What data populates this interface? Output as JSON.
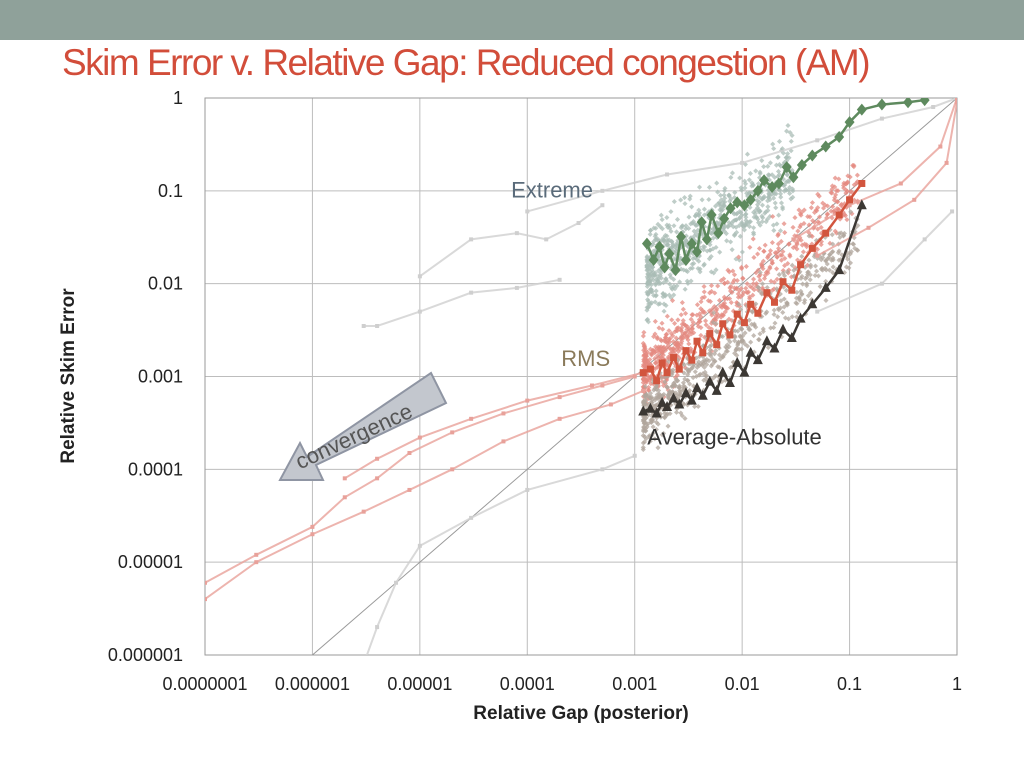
{
  "slide": {
    "title": "Skim Error v. Relative Gap: Reduced congestion (AM)",
    "title_color": "#d24d3a",
    "top_bar_color": "#8fa19a"
  },
  "chart_data": {
    "type": "scatter",
    "xlabel": "Relative Gap (posterior)",
    "ylabel": "Relative Skim Error",
    "x_scale": "log",
    "y_scale": "log",
    "xlim": [
      1e-07,
      1
    ],
    "ylim": [
      1e-06,
      1
    ],
    "x_ticks": [
      1e-07,
      1e-06,
      1e-05,
      0.0001,
      0.001,
      0.01,
      0.1,
      1
    ],
    "x_tick_labels": [
      "0.0000001",
      "0.000001",
      "0.00001",
      "0.0001",
      "0.001",
      "0.01",
      "0.1",
      "1"
    ],
    "y_ticks": [
      1e-06,
      1e-05,
      0.0001,
      0.001,
      0.01,
      0.1,
      1
    ],
    "y_tick_labels": [
      "0.000001",
      "0.00001",
      "0.0001",
      "0.001",
      "0.01",
      "0.1",
      "1"
    ],
    "grid": true,
    "reference_line": {
      "x": [
        1e-06,
        1
      ],
      "y": [
        1e-06,
        1
      ],
      "color": "#999999"
    },
    "annotations": [
      {
        "text": "Extreme",
        "x": 0.00017,
        "y": 0.085,
        "color": "#5a6b7a"
      },
      {
        "text": "RMS",
        "x": 0.00035,
        "y": 0.0013,
        "color": "#8a7a5a"
      },
      {
        "text": "Average-Absolute",
        "x": 0.0085,
        "y": 0.000185,
        "color": "#333333"
      },
      {
        "text": "convergence",
        "x": 4e-06,
        "y": 0.00025,
        "color": "#555555"
      }
    ],
    "series": [
      {
        "name": "Extreme",
        "color": "#5e8a5e",
        "marker": "diamond",
        "x": [
          0.0013,
          0.0015,
          0.0017,
          0.0019,
          0.0021,
          0.0024,
          0.0027,
          0.003,
          0.0034,
          0.0038,
          0.0042,
          0.0047,
          0.0052,
          0.006,
          0.0068,
          0.0078,
          0.009,
          0.0105,
          0.012,
          0.014,
          0.016,
          0.019,
          0.022,
          0.026,
          0.03,
          0.036,
          0.045,
          0.06,
          0.08,
          0.1,
          0.13,
          0.2,
          0.35,
          0.5
        ],
        "y": [
          0.027,
          0.018,
          0.025,
          0.015,
          0.021,
          0.014,
          0.032,
          0.018,
          0.027,
          0.022,
          0.046,
          0.03,
          0.055,
          0.035,
          0.05,
          0.065,
          0.075,
          0.07,
          0.08,
          0.1,
          0.13,
          0.11,
          0.12,
          0.18,
          0.14,
          0.19,
          0.24,
          0.3,
          0.38,
          0.55,
          0.75,
          0.85,
          0.9,
          0.95
        ]
      },
      {
        "name": "RMS",
        "color": "#d2553e",
        "marker": "square",
        "x": [
          0.0012,
          0.0014,
          0.0016,
          0.0018,
          0.002,
          0.0023,
          0.0026,
          0.003,
          0.0034,
          0.0038,
          0.0043,
          0.005,
          0.0058,
          0.0066,
          0.0077,
          0.009,
          0.0105,
          0.012,
          0.014,
          0.017,
          0.02,
          0.024,
          0.029,
          0.035,
          0.045,
          0.06,
          0.08,
          0.1,
          0.13
        ],
        "y": [
          0.0011,
          0.0012,
          0.0009,
          0.0014,
          0.0011,
          0.0016,
          0.0012,
          0.0019,
          0.0015,
          0.0024,
          0.0018,
          0.0029,
          0.0022,
          0.0037,
          0.0028,
          0.0047,
          0.0038,
          0.006,
          0.0048,
          0.008,
          0.0063,
          0.0105,
          0.0085,
          0.016,
          0.024,
          0.035,
          0.055,
          0.08,
          0.12
        ]
      },
      {
        "name": "Average-Absolute",
        "color": "#3c3834",
        "marker": "triangle",
        "x": [
          0.0012,
          0.0014,
          0.0016,
          0.0018,
          0.002,
          0.0023,
          0.0026,
          0.003,
          0.0034,
          0.0038,
          0.0043,
          0.005,
          0.0058,
          0.0066,
          0.0077,
          0.009,
          0.0105,
          0.012,
          0.014,
          0.017,
          0.02,
          0.024,
          0.029,
          0.035,
          0.045,
          0.06,
          0.08,
          0.13
        ],
        "y": [
          0.00042,
          0.00045,
          0.0004,
          0.00052,
          0.00047,
          0.00058,
          0.0005,
          0.00066,
          0.00055,
          0.00075,
          0.00062,
          0.00088,
          0.0007,
          0.0011,
          0.00085,
          0.0014,
          0.0011,
          0.0018,
          0.0015,
          0.0024,
          0.002,
          0.0032,
          0.0026,
          0.0042,
          0.006,
          0.009,
          0.014,
          0.07
        ]
      }
    ],
    "background_runs": [
      {
        "name": "",
        "color": "#e8a19a",
        "x": [
          1e-07,
          3e-07,
          1e-06,
          2e-06,
          4e-06,
          8e-06,
          2e-05,
          6e-05,
          0.0002,
          0.0005,
          0.001
        ],
        "y": [
          6e-06,
          1.2e-05,
          2.4e-05,
          5e-05,
          8e-05,
          0.00015,
          0.00025,
          0.0004,
          0.0006,
          0.0008,
          0.001
        ]
      },
      {
        "name": "",
        "color": "#e8a19a",
        "x": [
          1e-07,
          3e-07,
          1e-06,
          3e-06,
          8e-06,
          2e-05,
          6e-05,
          0.0002,
          0.0006,
          0.0012
        ],
        "y": [
          4e-06,
          1e-05,
          2e-05,
          3.5e-05,
          6e-05,
          0.0001,
          0.0002,
          0.00035,
          0.0005,
          0.0007
        ]
      },
      {
        "name": "",
        "color": "#e8a19a",
        "x": [
          2e-06,
          4e-06,
          1e-05,
          3e-05,
          0.0001,
          0.0004,
          0.0012
        ],
        "y": [
          8e-05,
          0.00013,
          0.00022,
          0.00035,
          0.00055,
          0.0008,
          0.0011
        ]
      },
      {
        "name": "",
        "color": "#cfcfcf",
        "x": [
          3e-06,
          4e-06,
          1e-05,
          3e-05,
          8e-05,
          0.0002
        ],
        "y": [
          0.0035,
          0.0035,
          0.005,
          0.008,
          0.009,
          0.011
        ]
      },
      {
        "name": "",
        "color": "#cfcfcf",
        "x": [
          1e-05,
          3e-05,
          8e-05,
          0.00015,
          0.0003,
          0.0005
        ],
        "y": [
          0.012,
          0.03,
          0.035,
          0.03,
          0.045,
          0.07
        ]
      },
      {
        "name": "",
        "color": "#cfcfcf",
        "x": [
          3e-06,
          4e-06,
          6e-06,
          1e-05,
          3e-05,
          0.0001,
          0.0005,
          0.001
        ],
        "y": [
          8e-07,
          2e-06,
          6e-06,
          1.5e-05,
          3e-05,
          6e-05,
          0.0001,
          0.00014
        ]
      },
      {
        "name": "",
        "color": "#cfcfcf",
        "x": [
          0.0001,
          0.0005,
          0.002,
          0.01,
          0.05,
          0.2,
          0.6,
          1
        ],
        "y": [
          0.06,
          0.1,
          0.15,
          0.2,
          0.35,
          0.6,
          0.8,
          1
        ]
      },
      {
        "name": "",
        "color": "#e8a19a",
        "x": [
          0.05,
          0.15,
          0.4,
          0.8,
          1
        ],
        "y": [
          0.02,
          0.04,
          0.08,
          0.2,
          0.9
        ]
      },
      {
        "name": "",
        "color": "#e8a19a",
        "x": [
          0.03,
          0.1,
          0.3,
          0.7,
          1
        ],
        "y": [
          0.03,
          0.07,
          0.12,
          0.3,
          1
        ]
      },
      {
        "name": "",
        "color": "#cfcfcf",
        "x": [
          0.05,
          0.2,
          0.5,
          0.9
        ],
        "y": [
          0.005,
          0.01,
          0.03,
          0.06
        ]
      }
    ],
    "point_clouds": [
      {
        "name": "Extreme cloud",
        "color": "#a9bcb5",
        "x_range": [
          0.0013,
          0.03
        ],
        "y_center_at_x_start": 0.012,
        "slope": 0.85,
        "spread": 0.45,
        "count": 700
      },
      {
        "name": "RMS cloud",
        "color": "#e48a80",
        "x_range": [
          0.0012,
          0.12
        ],
        "y_center_at_x_start": 0.0011,
        "slope": 1.0,
        "spread": 0.35,
        "count": 650
      },
      {
        "name": "Average-Absolute cloud",
        "color": "#b0a69c",
        "x_range": [
          0.0012,
          0.12
        ],
        "y_center_at_x_start": 0.00035,
        "slope": 1.0,
        "spread": 0.35,
        "count": 600
      }
    ]
  }
}
